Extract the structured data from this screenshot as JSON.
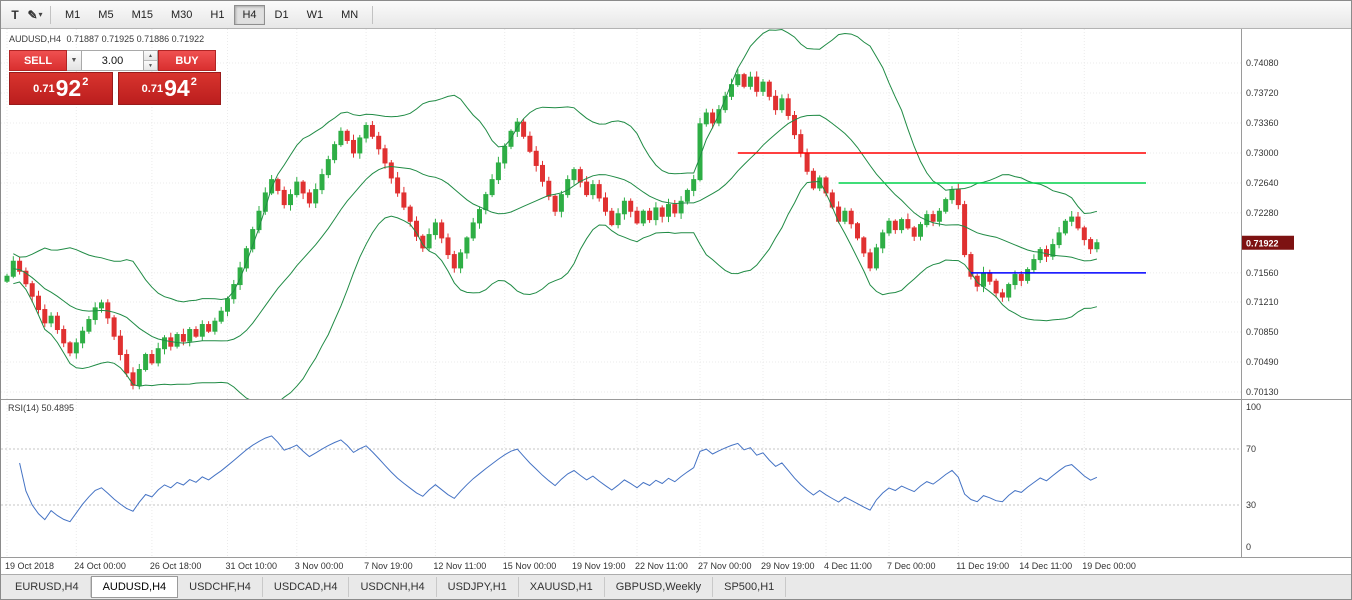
{
  "toolbar": {
    "left_icons": [
      {
        "name": "text-label-icon",
        "glyph": "T"
      },
      {
        "name": "drawing-tool-icon",
        "glyph": "✎"
      }
    ],
    "dropdown_glyph": "▾",
    "timeframes": [
      {
        "label": "M1",
        "active": false
      },
      {
        "label": "M5",
        "active": false
      },
      {
        "label": "M15",
        "active": false
      },
      {
        "label": "M30",
        "active": false
      },
      {
        "label": "H1",
        "active": false
      },
      {
        "label": "H4",
        "active": true
      },
      {
        "label": "D1",
        "active": false
      },
      {
        "label": "W1",
        "active": false
      },
      {
        "label": "MN",
        "active": false
      }
    ]
  },
  "chart_header": {
    "symbol": "AUDUSD,H4",
    "ohlc": "0.71887 0.71925 0.71886 0.71922"
  },
  "trade_panel": {
    "sell_label": "SELL",
    "buy_label": "BUY",
    "volume": "3.00",
    "dropdown_glyph": "▼",
    "spin_up": "▲",
    "spin_down": "▼",
    "bid": {
      "prefix": "0.71",
      "big": "92",
      "sup": "2"
    },
    "ask": {
      "prefix": "0.71",
      "big": "94",
      "sup": "2"
    }
  },
  "price_axis": {
    "ticks": [
      "0.74080",
      "0.73720",
      "0.73360",
      "0.73000",
      "0.72640",
      "0.72280",
      "0.71560",
      "0.71210",
      "0.70850",
      "0.70490",
      "0.70130"
    ],
    "current_price": "0.71922"
  },
  "rsi_panel": {
    "header": "RSI(14) 50.4895",
    "ticks": [
      "100",
      "70",
      "30",
      "0"
    ]
  },
  "tabs": {
    "items": [
      "EURUSD,H4",
      "AUDUSD,H4",
      "USDCHF,H4",
      "USDCAD,H4",
      "USDCNH,H4",
      "USDJPY,H1",
      "XAUUSD,H1",
      "GBPUSD,Weekly",
      "SP500,H1"
    ],
    "active_index": 1
  },
  "chart_data": {
    "type": "candlestick",
    "symbol": "AUDUSD",
    "timeframe": "H4",
    "current_bar": {
      "open": 0.71887,
      "high": 0.71925,
      "low": 0.71886,
      "close": 0.71922
    },
    "y_ticks": [
      0.7408,
      0.7372,
      0.7336,
      0.73,
      0.7264,
      0.7228,
      0.7156,
      0.7121,
      0.7085,
      0.7049,
      0.7013
    ],
    "ylim": [
      0.7,
      0.742
    ],
    "closes": [
      0.7152,
      0.717,
      0.7158,
      0.7143,
      0.7128,
      0.7112,
      0.7096,
      0.7104,
      0.7088,
      0.7072,
      0.706,
      0.7072,
      0.7086,
      0.71,
      0.7114,
      0.712,
      0.7102,
      0.708,
      0.7058,
      0.7036,
      0.7021,
      0.704,
      0.7058,
      0.7048,
      0.7065,
      0.7078,
      0.7068,
      0.7082,
      0.7074,
      0.7088,
      0.708,
      0.7094,
      0.7086,
      0.7098,
      0.711,
      0.7125,
      0.7142,
      0.7162,
      0.7185,
      0.7208,
      0.723,
      0.7252,
      0.7268,
      0.7255,
      0.7238,
      0.725,
      0.7265,
      0.7252,
      0.724,
      0.7256,
      0.7274,
      0.7292,
      0.731,
      0.7326,
      0.7315,
      0.73,
      0.7318,
      0.7333,
      0.732,
      0.7305,
      0.7288,
      0.727,
      0.7252,
      0.7235,
      0.7218,
      0.72,
      0.7186,
      0.7202,
      0.7216,
      0.7198,
      0.7178,
      0.7162,
      0.718,
      0.7198,
      0.7216,
      0.7232,
      0.725,
      0.7268,
      0.7288,
      0.7308,
      0.7326,
      0.7337,
      0.732,
      0.7302,
      0.7285,
      0.7266,
      0.7248,
      0.723,
      0.725,
      0.7268,
      0.728,
      0.7265,
      0.725,
      0.7262,
      0.7246,
      0.723,
      0.7214,
      0.7227,
      0.7242,
      0.723,
      0.7216,
      0.723,
      0.722,
      0.7234,
      0.7224,
      0.7238,
      0.7228,
      0.7242,
      0.7255,
      0.7268,
      0.7335,
      0.7348,
      0.7336,
      0.7352,
      0.7368,
      0.7382,
      0.7394,
      0.738,
      0.7391,
      0.7374,
      0.7385,
      0.7368,
      0.7352,
      0.7365,
      0.7345,
      0.7322,
      0.73,
      0.7278,
      0.7258,
      0.727,
      0.7252,
      0.7235,
      0.7218,
      0.723,
      0.7215,
      0.7198,
      0.718,
      0.7162,
      0.7186,
      0.7204,
      0.7218,
      0.7208,
      0.722,
      0.721,
      0.72,
      0.7214,
      0.7226,
      0.7218,
      0.723,
      0.7244,
      0.7256,
      0.7238,
      0.7178,
      0.7152,
      0.714,
      0.7156,
      0.7146,
      0.7132,
      0.7127,
      0.7142,
      0.7154,
      0.7147,
      0.716,
      0.7172,
      0.7184,
      0.7176,
      0.719,
      0.7204,
      0.7218,
      0.7223,
      0.721,
      0.7196,
      0.7185,
      0.71922
    ],
    "date_labels": [
      {
        "label": "19 Oct 2018",
        "index": 0
      },
      {
        "label": "24 Oct 00:00",
        "index": 11
      },
      {
        "label": "26 Oct 18:00",
        "index": 23
      },
      {
        "label": "31 Oct 10:00",
        "index": 35
      },
      {
        "label": "3 Nov 00:00",
        "index": 46
      },
      {
        "label": "7 Nov 19:00",
        "index": 57
      },
      {
        "label": "12 Nov 11:00",
        "index": 68
      },
      {
        "label": "15 Nov 00:00",
        "index": 79
      },
      {
        "label": "19 Nov 19:00",
        "index": 90
      },
      {
        "label": "22 Nov 11:00",
        "index": 100
      },
      {
        "label": "27 Nov 00:00",
        "index": 110
      },
      {
        "label": "29 Nov 19:00",
        "index": 120
      },
      {
        "label": "4 Dec 11:00",
        "index": 130
      },
      {
        "label": "7 Dec 00:00",
        "index": 140
      },
      {
        "label": "11 Dec 19:00",
        "index": 151
      },
      {
        "label": "14 Dec 11:00",
        "index": 161
      },
      {
        "label": "19 Dec 00:00",
        "index": 171
      }
    ],
    "indicators": {
      "bollinger": {
        "period": 20,
        "deviation": 2,
        "color": "#208b45"
      },
      "rsi": {
        "period": 14,
        "value": 50.4895,
        "color": "#4573c4",
        "levels": [
          70,
          30
        ],
        "range": [
          0,
          100
        ]
      }
    },
    "hlines": [
      {
        "color": "#ff0000",
        "price": 0.73,
        "start_index": 116
      },
      {
        "color": "#00d24b",
        "price": 0.7264,
        "start_index": 132
      },
      {
        "color": "#0000ff",
        "price": 0.7156,
        "start_index": 153
      }
    ],
    "colors": {
      "up": "#2eae45",
      "down": "#e03131",
      "bg": "#ffffff",
      "grid": "#ebebeb",
      "badge": "#7d1212"
    }
  }
}
